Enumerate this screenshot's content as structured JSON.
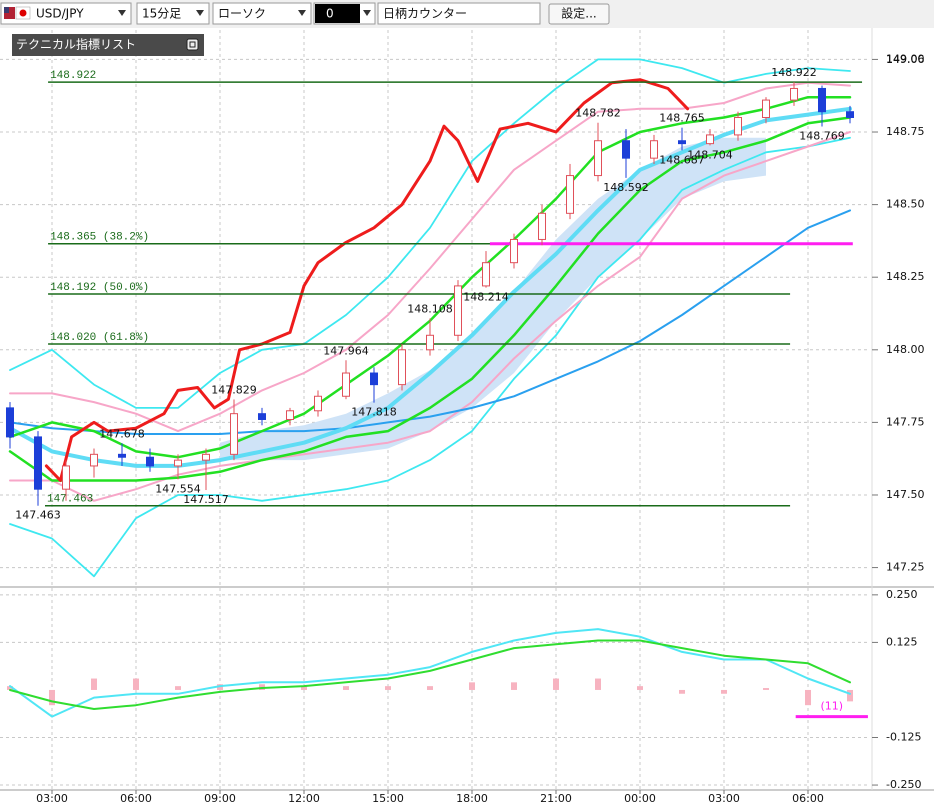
{
  "toolbar": {
    "symbol": "USD/JPY",
    "timeframe": "15分足",
    "chart_style": "ローソク",
    "counter": "0",
    "day_counter": "日柄カウンター",
    "settings": "設定..."
  },
  "indicator_panel": {
    "title": "テクニカル指標リスト"
  },
  "chart_data": [
    {
      "type": "candlestick",
      "x": [
        1.5,
        2.5,
        3.5,
        4.5,
        5.5,
        6.5,
        7.5,
        8.5,
        9.5,
        10.5,
        11.5,
        12.5,
        13.5,
        14.5,
        15.5,
        16.5,
        17.5,
        18.5,
        19.5,
        20.5,
        21.5,
        22.5,
        23.5,
        24.5,
        25.5,
        26.5,
        27.5,
        28.5,
        29.5,
        30.5,
        31.5
      ],
      "open": [
        147.8,
        147.7,
        147.52,
        147.6,
        147.64,
        147.63,
        147.6,
        147.62,
        147.64,
        147.78,
        147.76,
        147.79,
        147.84,
        147.92,
        147.88,
        148.0,
        148.05,
        148.22,
        148.3,
        148.38,
        148.47,
        148.6,
        148.72,
        148.66,
        148.72,
        148.71,
        148.74,
        148.8,
        148.86,
        148.9,
        148.82
      ],
      "high": [
        147.82,
        147.72,
        147.62,
        147.66,
        147.678,
        147.66,
        147.64,
        147.66,
        147.829,
        147.8,
        147.8,
        147.86,
        147.964,
        147.94,
        148.02,
        148.108,
        148.24,
        148.34,
        148.4,
        148.5,
        148.64,
        148.782,
        148.76,
        148.74,
        148.765,
        148.76,
        148.82,
        148.87,
        148.922,
        148.91,
        148.84
      ],
      "low": [
        147.66,
        147.463,
        147.48,
        147.56,
        147.6,
        147.58,
        147.554,
        147.517,
        147.62,
        147.74,
        147.74,
        147.77,
        147.83,
        147.818,
        147.86,
        147.98,
        148.03,
        148.214,
        148.28,
        148.36,
        148.45,
        148.58,
        148.592,
        148.64,
        148.687,
        148.704,
        148.72,
        148.78,
        148.84,
        148.769,
        148.78
      ],
      "close": [
        147.7,
        147.52,
        147.6,
        147.64,
        147.63,
        147.6,
        147.62,
        147.64,
        147.78,
        147.76,
        147.79,
        147.84,
        147.92,
        147.88,
        148.0,
        148.05,
        148.22,
        148.3,
        148.38,
        148.47,
        148.6,
        148.72,
        148.66,
        148.72,
        148.71,
        148.74,
        148.8,
        148.86,
        148.9,
        148.82,
        148.8
      ],
      "up_color": "#e0505a",
      "down_color": "#1c3fd8",
      "xlim": [
        1.143,
        32.214
      ],
      "xticks": [
        {
          "value": 3,
          "label": "03:00"
        },
        {
          "value": 6,
          "label": "06:00"
        },
        {
          "value": 9,
          "label": "09:00"
        },
        {
          "value": 12,
          "label": "12:00"
        },
        {
          "value": 15,
          "label": "15:00"
        },
        {
          "value": 18,
          "label": "18:00"
        },
        {
          "value": 21,
          "label": "21:00"
        },
        {
          "value": 24,
          "label": "00:00"
        },
        {
          "value": 27,
          "label": "03:00"
        },
        {
          "value": 30,
          "label": "06:00"
        }
      ],
      "ylim": [
        147.19,
        149.06
      ],
      "yticks": [
        147.25,
        {
          "value": 147.5,
          "label": "147.50"
        },
        147.75,
        {
          "value": 148,
          "label": "148.00"
        },
        148.25,
        {
          "value": 148.5,
          "label": "148.50"
        },
        148.75,
        {
          "value": 149,
          "label": "149.00"
        }
      ],
      "grid": true,
      "line_x": [
        1.5,
        3,
        4.5,
        6,
        7.5,
        9,
        10.5,
        12,
        13.5,
        15,
        16.5,
        18,
        19.5,
        21,
        22.5,
        24,
        25.5,
        27,
        28.5,
        30,
        31.5
      ],
      "band": {
        "color": "#cfe3f7",
        "x": [
          9,
          10.5,
          12,
          13.5,
          15,
          16.5,
          18,
          19.5,
          21,
          22.5,
          24,
          25.5,
          27,
          28.5
        ],
        "upper": [
          147.68,
          147.72,
          147.74,
          147.78,
          147.85,
          147.93,
          148.05,
          148.2,
          148.38,
          148.52,
          148.62,
          148.7,
          148.73,
          148.73
        ],
        "lower": [
          147.62,
          147.62,
          147.62,
          147.64,
          147.66,
          147.72,
          147.8,
          147.92,
          148.1,
          148.25,
          148.38,
          148.52,
          148.58,
          148.6
        ]
      },
      "lines": [
        {
          "color": "#3ee8f0",
          "values": [
            147.93,
            148.0,
            147.88,
            147.8,
            147.8,
            147.92,
            148.0,
            148.02,
            148.12,
            148.25,
            148.42,
            148.65,
            148.78,
            148.9,
            149.0,
            149.0,
            148.97,
            148.92,
            148.95,
            148.97,
            148.96
          ]
        },
        {
          "color": "#3ee8f0",
          "values": [
            147.4,
            147.35,
            147.22,
            147.42,
            147.5,
            147.5,
            147.48,
            147.5,
            147.52,
            147.55,
            147.62,
            147.72,
            147.9,
            148.05,
            148.25,
            148.38,
            148.55,
            148.62,
            148.68,
            148.7,
            148.73
          ]
        },
        {
          "color": "#f7a6c8",
          "values": [
            147.85,
            147.85,
            147.82,
            147.78,
            147.72,
            147.78,
            147.86,
            147.92,
            148.0,
            148.12,
            148.28,
            148.45,
            148.62,
            148.72,
            148.82,
            148.83,
            148.83,
            148.85,
            148.9,
            148.92,
            148.91
          ]
        },
        {
          "color": "#f7a6c8",
          "values": [
            147.55,
            147.55,
            147.48,
            147.52,
            147.57,
            147.6,
            147.62,
            147.64,
            147.66,
            147.68,
            147.72,
            147.82,
            147.97,
            148.1,
            148.22,
            148.32,
            148.52,
            148.6,
            148.65,
            148.7,
            148.75
          ]
        },
        {
          "color": "#2aa0ef",
          "values": [
            147.75,
            147.73,
            147.72,
            147.71,
            147.71,
            147.71,
            147.72,
            147.72,
            147.73,
            147.75,
            147.77,
            147.8,
            147.84,
            147.9,
            147.96,
            148.03,
            148.12,
            148.22,
            148.32,
            148.42,
            148.48
          ]
        },
        {
          "color": "#5fdcf5",
          "values": [
            147.73,
            147.65,
            147.62,
            147.6,
            147.6,
            147.62,
            147.65,
            147.68,
            147.73,
            147.8,
            147.92,
            148.05,
            148.2,
            148.33,
            148.48,
            148.62,
            148.68,
            148.74,
            148.79,
            148.81,
            148.83
          ]
        },
        {
          "color": "#22e022",
          "values": [
            147.65,
            147.55,
            147.55,
            147.55,
            147.56,
            147.58,
            147.62,
            147.65,
            147.7,
            147.72,
            147.8,
            147.9,
            148.05,
            148.22,
            148.4,
            148.55,
            148.65,
            148.68,
            148.72,
            148.78,
            148.8
          ]
        },
        {
          "color": "#22e022",
          "values": [
            147.7,
            147.75,
            147.72,
            147.65,
            147.63,
            147.66,
            147.72,
            147.78,
            147.88,
            147.98,
            148.1,
            148.25,
            148.38,
            148.52,
            148.68,
            148.75,
            148.78,
            148.8,
            148.83,
            148.87,
            148.87
          ]
        },
        {
          "color": "#ee1c1c",
          "x": [
            2.8,
            3.3,
            3.7,
            4.5,
            5,
            6,
            7,
            7.5,
            8.2,
            8.8,
            9.3,
            9.7,
            10.5,
            11.5,
            12,
            12.5,
            13.5,
            14.5,
            15.5,
            16.5,
            17,
            17.5,
            18.2,
            19,
            20,
            21,
            22,
            23,
            24,
            25,
            25.7
          ],
          "values": [
            147.6,
            147.55,
            147.7,
            147.75,
            147.72,
            147.73,
            147.78,
            147.86,
            147.87,
            147.8,
            147.83,
            148.0,
            148.02,
            148.06,
            148.22,
            148.3,
            148.37,
            148.42,
            148.5,
            148.65,
            148.77,
            148.72,
            148.58,
            148.76,
            148.78,
            148.75,
            148.85,
            148.92,
            148.93,
            148.9,
            148.83
          ]
        }
      ],
      "hlines": [
        {
          "value": 148.922,
          "label": "148.922",
          "x": [
            2.86,
            31.93
          ],
          "color": "#1a6b1a"
        },
        {
          "value": 148.365,
          "label": "148.365 (38.2%)",
          "x": [
            2.86,
            29.36
          ],
          "color": "#1a6b1a"
        },
        {
          "value": 148.192,
          "label": "148.192 (50.0%)",
          "x": [
            2.86,
            29.36
          ],
          "color": "#1a6b1a"
        },
        {
          "value": 148.02,
          "label": "148.020 (61.8%)",
          "x": [
            2.86,
            29.36
          ],
          "color": "#1a6b1a"
        },
        {
          "value": 147.463,
          "label": "147.463",
          "x": [
            2.75,
            29.36
          ],
          "color": "#1a6b1a"
        },
        {
          "value": 148.365,
          "x": [
            18.64,
            31.6
          ],
          "color": "#ff1ef0"
        }
      ],
      "annotations": [
        {
          "value": 147.463,
          "x": 2.5
        },
        {
          "value": 147.678,
          "x": 5.5
        },
        {
          "value": 147.554,
          "x": 7.5
        },
        {
          "value": 147.517,
          "x": 8.5
        },
        {
          "value": 147.829,
          "x": 9.5
        },
        {
          "value": 147.964,
          "x": 13.5
        },
        {
          "value": 147.818,
          "x": 14.5
        },
        {
          "value": 148.108,
          "x": 16.5
        },
        {
          "value": 148.214,
          "x": 18.5
        },
        {
          "value": 148.782,
          "x": 22.5
        },
        {
          "value": 148.592,
          "x": 23.5
        },
        {
          "value": 148.687,
          "x": 25.5
        },
        {
          "value": 148.765,
          "x": 25.5
        },
        {
          "value": 148.704,
          "x": 26.5
        },
        {
          "value": 148.922,
          "x": 29.5
        },
        {
          "value": 148.769,
          "x": 30.5
        }
      ]
    },
    {
      "type": "line",
      "x": [
        1.5,
        3,
        4.5,
        6,
        7.5,
        9,
        10.5,
        12,
        13.5,
        15,
        16.5,
        18,
        19.5,
        21,
        22.5,
        24,
        25.5,
        27,
        28.5,
        30,
        31.5
      ],
      "series": [
        {
          "color": "#50e6f5",
          "values": [
            0.01,
            -0.07,
            -0.02,
            -0.01,
            -0.01,
            0.01,
            0.02,
            0.02,
            0.03,
            0.04,
            0.06,
            0.1,
            0.13,
            0.15,
            0.16,
            0.14,
            0.1,
            0.08,
            0.08,
            0.03,
            -0.01
          ]
        },
        {
          "color": "#30dd30",
          "values": [
            0.0,
            -0.03,
            -0.05,
            -0.04,
            -0.02,
            -0.005,
            0.005,
            0.01,
            0.02,
            0.03,
            0.05,
            0.08,
            0.11,
            0.12,
            0.13,
            0.13,
            0.11,
            0.09,
            0.08,
            0.07,
            0.02
          ]
        }
      ],
      "histogram": {
        "color": "#f7b3c0",
        "values": [
          0.01,
          -0.04,
          0.03,
          0.03,
          0.01,
          0.015,
          0.015,
          0.01,
          0.01,
          0.01,
          0.01,
          0.02,
          0.02,
          0.03,
          0.03,
          0.01,
          -0.01,
          -0.01,
          0.005,
          -0.04,
          -0.03
        ]
      },
      "ylim": [
        -0.263,
        0.268
      ],
      "yticks": [
        {
          "value": -0.25,
          "label": "-0.250"
        },
        -0.125,
        0.125,
        {
          "value": 0.25,
          "label": "0.250"
        }
      ],
      "grid": true,
      "hline": {
        "value": -0.07,
        "label": "(11)",
        "x": [
          29.56,
          32.14
        ],
        "color": "#ff1ef0"
      }
    }
  ]
}
